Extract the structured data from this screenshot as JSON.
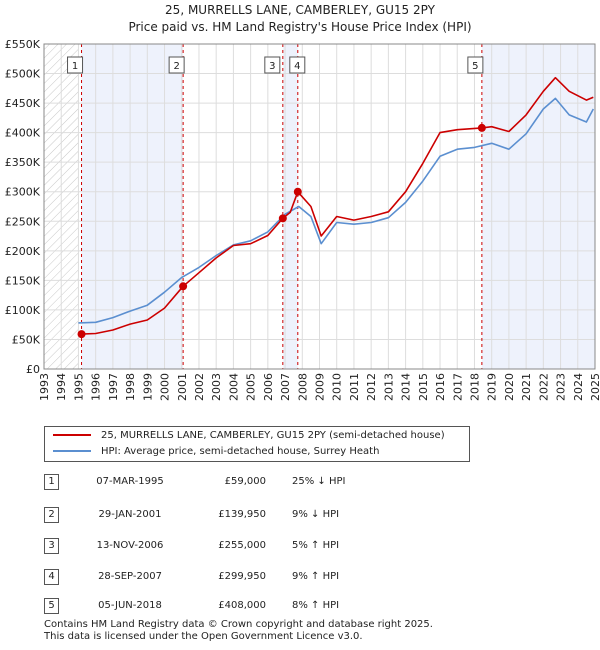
{
  "chart_data": {
    "type": "line",
    "title": "25, MURRELLS LANE, CAMBERLEY, GU15 2PY",
    "subtitle": "Price paid vs. HM Land Registry's House Price Index (HPI)",
    "xlabel": "",
    "ylabel": "",
    "xlim": [
      1993,
      2025
    ],
    "ylim": [
      0,
      550000
    ],
    "y_ticks": [
      {
        "value": 0,
        "label": "£0"
      },
      {
        "value": 50000,
        "label": "£50K"
      },
      {
        "value": 100000,
        "label": "£100K"
      },
      {
        "value": 150000,
        "label": "£150K"
      },
      {
        "value": 200000,
        "label": "£200K"
      },
      {
        "value": 250000,
        "label": "£250K"
      },
      {
        "value": 300000,
        "label": "£300K"
      },
      {
        "value": 350000,
        "label": "£350K"
      },
      {
        "value": 400000,
        "label": "£400K"
      },
      {
        "value": 450000,
        "label": "£450K"
      },
      {
        "value": 500000,
        "label": "£500K"
      },
      {
        "value": 550000,
        "label": "£550K"
      }
    ],
    "x_ticks": [
      "1993",
      "1994",
      "1995",
      "1996",
      "1997",
      "1998",
      "1999",
      "2000",
      "2001",
      "2002",
      "2003",
      "2004",
      "2005",
      "2006",
      "2007",
      "2008",
      "2009",
      "2010",
      "2011",
      "2012",
      "2013",
      "2014",
      "2015",
      "2016",
      "2017",
      "2018",
      "2019",
      "2020",
      "2021",
      "2022",
      "2023",
      "2024",
      "2025"
    ],
    "grid": true,
    "series": [
      {
        "name": "25, MURRELLS LANE, CAMBERLEY, GU15 2PY (semi-detached house)",
        "color": "#cc0000",
        "points": [
          [
            1995.18,
            59000
          ],
          [
            1996,
            60000
          ],
          [
            1997,
            66000
          ],
          [
            1998,
            76000
          ],
          [
            1999,
            83000
          ],
          [
            2000,
            103000
          ],
          [
            2001.08,
            139950
          ],
          [
            2002,
            163000
          ],
          [
            2003,
            188000
          ],
          [
            2004,
            209000
          ],
          [
            2005,
            212000
          ],
          [
            2006,
            226000
          ],
          [
            2006.87,
            255000
          ],
          [
            2007.3,
            265000
          ],
          [
            2007.74,
            299950
          ],
          [
            2008.5,
            275000
          ],
          [
            2009.1,
            225000
          ],
          [
            2010,
            258000
          ],
          [
            2011,
            252000
          ],
          [
            2012,
            258000
          ],
          [
            2013,
            266000
          ],
          [
            2014,
            300000
          ],
          [
            2015,
            348000
          ],
          [
            2016,
            400000
          ],
          [
            2017,
            405000
          ],
          [
            2018.43,
            408000
          ],
          [
            2019,
            410000
          ],
          [
            2020,
            402000
          ],
          [
            2021,
            430000
          ],
          [
            2022,
            470000
          ],
          [
            2022.7,
            493000
          ],
          [
            2023.5,
            470000
          ],
          [
            2024.5,
            455000
          ],
          [
            2024.9,
            460000
          ]
        ]
      },
      {
        "name": "HPI: Average price, semi-detached house, Surrey Heath",
        "color": "#5b8fd0",
        "points": [
          [
            1995,
            78000
          ],
          [
            1996,
            79000
          ],
          [
            1997,
            87000
          ],
          [
            1998,
            98000
          ],
          [
            1999,
            108000
          ],
          [
            2000,
            130000
          ],
          [
            2001,
            155000
          ],
          [
            2002,
            172000
          ],
          [
            2003,
            192000
          ],
          [
            2004,
            210000
          ],
          [
            2005,
            217000
          ],
          [
            2006,
            232000
          ],
          [
            2007,
            262000
          ],
          [
            2007.8,
            275000
          ],
          [
            2008.5,
            258000
          ],
          [
            2009.1,
            212000
          ],
          [
            2010,
            248000
          ],
          [
            2011,
            245000
          ],
          [
            2012,
            248000
          ],
          [
            2013,
            256000
          ],
          [
            2014,
            282000
          ],
          [
            2015,
            318000
          ],
          [
            2016,
            360000
          ],
          [
            2017,
            372000
          ],
          [
            2018,
            375000
          ],
          [
            2019,
            382000
          ],
          [
            2020,
            372000
          ],
          [
            2021,
            398000
          ],
          [
            2022,
            440000
          ],
          [
            2022.7,
            458000
          ],
          [
            2023.5,
            430000
          ],
          [
            2024.5,
            418000
          ],
          [
            2024.9,
            440000
          ]
        ]
      }
    ],
    "sales": [
      {
        "n": "1",
        "x": 1995.18,
        "price": 59000
      },
      {
        "n": "2",
        "x": 2001.08,
        "price": 139950
      },
      {
        "n": "3",
        "x": 2006.87,
        "price": 255000
      },
      {
        "n": "4",
        "x": 2007.74,
        "price": 299950
      },
      {
        "n": "5",
        "x": 2018.43,
        "price": 408000
      }
    ],
    "hatch_until": 1995.0
  },
  "legend": {
    "property_label": "25, MURRELLS LANE, CAMBERLEY, GU15 2PY (semi-detached house)",
    "hpi_label": "HPI: Average price, semi-detached house, Surrey Heath",
    "property_color": "#cc0000",
    "hpi_color": "#5b8fd0"
  },
  "sales_table": [
    {
      "n": "1",
      "date": "07-MAR-1995",
      "price": "£59,000",
      "hpi": "25% ↓ HPI"
    },
    {
      "n": "2",
      "date": "29-JAN-2001",
      "price": "£139,950",
      "hpi": "9% ↓ HPI"
    },
    {
      "n": "3",
      "date": "13-NOV-2006",
      "price": "£255,000",
      "hpi": "5% ↑ HPI"
    },
    {
      "n": "4",
      "date": "28-SEP-2007",
      "price": "£299,950",
      "hpi": "9% ↑ HPI"
    },
    {
      "n": "5",
      "date": "05-JUN-2018",
      "price": "£408,000",
      "hpi": "8% ↑ HPI"
    }
  ],
  "footer": {
    "line1": "Contains HM Land Registry data © Crown copyright and database right 2025.",
    "line2": "This data is licensed under the Open Government Licence v3.0."
  }
}
